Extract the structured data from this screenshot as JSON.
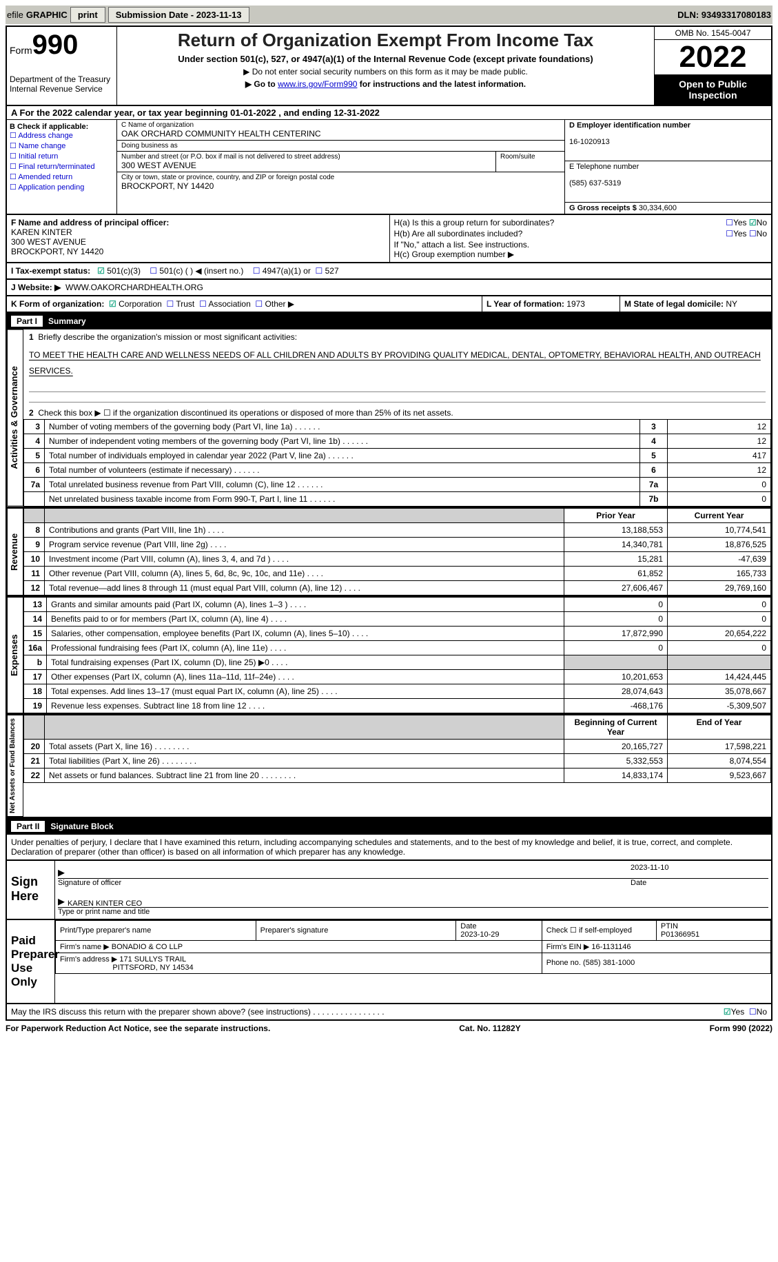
{
  "toolbar": {
    "efile": "efile",
    "graphic": "GRAPHIC",
    "print": "print",
    "submission_label": "Submission Date - 2023-11-13",
    "dln_label": "DLN: 93493317080183"
  },
  "header": {
    "form": "Form",
    "form_no": "990",
    "dept": "Department of the Treasury\nInternal Revenue Service",
    "title": "Return of Organization Exempt From Income Tax",
    "subtitle": "Under section 501(c), 527, or 4947(a)(1) of the Internal Revenue Code (except private foundations)",
    "note1": "▶ Do not enter social security numbers on this form as it may be made public.",
    "note2_pre": "▶ Go to ",
    "note2_link": "www.irs.gov/Form990",
    "note2_post": " for instructions and the latest information.",
    "omb": "OMB No. 1545-0047",
    "year": "2022",
    "inspection": "Open to Public Inspection"
  },
  "rowA": "A For the 2022 calendar year, or tax year beginning 01-01-2022   , and ending 12-31-2022",
  "boxB": {
    "label": "B Check if applicable:",
    "items": [
      "Address change",
      "Name change",
      "Initial return",
      "Final return/terminated",
      "Amended return",
      "Application pending"
    ]
  },
  "boxC": {
    "name_lab": "C Name of organization",
    "name": "OAK ORCHARD COMMUNITY HEALTH CENTERINC",
    "dba_lab": "Doing business as",
    "dba": "",
    "street_lab": "Number and street (or P.O. box if mail is not delivered to street address)",
    "street": "300 WEST AVENUE",
    "room_lab": "Room/suite",
    "city_lab": "City or town, state or province, country, and ZIP or foreign postal code",
    "city": "BROCKPORT, NY  14420"
  },
  "boxD": {
    "lab": "D Employer identification number",
    "val": "16-1020913"
  },
  "boxE": {
    "lab": "E Telephone number",
    "val": "(585) 637-5319"
  },
  "boxG": {
    "lab": "G Gross receipts $",
    "val": "30,334,600"
  },
  "boxF": {
    "lab": "F  Name and address of principal officer:",
    "name": "KAREN KINTER",
    "addr1": "300 WEST AVENUE",
    "addr2": "BROCKPORT, NY  14420"
  },
  "boxH": {
    "a_lab": "H(a)  Is this a group return for subordinates?",
    "a_val": "No",
    "b_lab": "H(b)  Are all subordinates included?",
    "b_note": "If \"No,\" attach a list. See instructions.",
    "c_lab": "H(c)  Group exemption number ▶"
  },
  "rowI": {
    "lab": "I  Tax-exempt status:",
    "opt1": "501(c)(3)",
    "opt2": "501(c) (   ) ◀ (insert no.)",
    "opt3": "4947(a)(1) or",
    "opt4": "527"
  },
  "rowJ": {
    "lab": "J  Website: ▶",
    "val": "WWW.OAKORCHARDHEALTH.ORG"
  },
  "rowK": {
    "lab": "K Form of organization:",
    "opts": [
      "Corporation",
      "Trust",
      "Association",
      "Other ▶"
    ],
    "L_lab": "L Year of formation:",
    "L_val": "1973",
    "M_lab": "M State of legal domicile:",
    "M_val": "NY"
  },
  "part1": {
    "title": "Part I",
    "heading": "Summary",
    "q1": "Briefly describe the organization's mission or most significant activities:",
    "mission": "TO MEET THE HEALTH CARE AND WELLNESS NEEDS OF ALL CHILDREN AND ADULTS BY PROVIDING QUALITY MEDICAL, DENTAL, OPTOMETRY, BEHAVIORAL HEALTH, AND OUTREACH SERVICES.",
    "q2": "Check this box ▶ ☐  if the organization discontinued its operations or disposed of more than 25% of its net assets.",
    "lines_simple": [
      {
        "n": "3",
        "t": "Number of voting members of the governing body (Part VI, line 1a)",
        "box": "3",
        "v": "12"
      },
      {
        "n": "4",
        "t": "Number of independent voting members of the governing body (Part VI, line 1b)",
        "box": "4",
        "v": "12"
      },
      {
        "n": "5",
        "t": "Total number of individuals employed in calendar year 2022 (Part V, line 2a)",
        "box": "5",
        "v": "417"
      },
      {
        "n": "6",
        "t": "Total number of volunteers (estimate if necessary)",
        "box": "6",
        "v": "12"
      },
      {
        "n": "7a",
        "t": "Total unrelated business revenue from Part VIII, column (C), line 12",
        "box": "7a",
        "v": "0"
      },
      {
        "n": "",
        "t": "Net unrelated business taxable income from Form 990-T, Part I, line 11",
        "box": "7b",
        "v": "0"
      }
    ],
    "col_headers": {
      "prior": "Prior Year",
      "current": "Current Year"
    },
    "revenue": [
      {
        "n": "8",
        "t": "Contributions and grants (Part VIII, line 1h)",
        "p": "13,188,553",
        "c": "10,774,541"
      },
      {
        "n": "9",
        "t": "Program service revenue (Part VIII, line 2g)",
        "p": "14,340,781",
        "c": "18,876,525"
      },
      {
        "n": "10",
        "t": "Investment income (Part VIII, column (A), lines 3, 4, and 7d )",
        "p": "15,281",
        "c": "-47,639"
      },
      {
        "n": "11",
        "t": "Other revenue (Part VIII, column (A), lines 5, 6d, 8c, 9c, 10c, and 11e)",
        "p": "61,852",
        "c": "165,733"
      },
      {
        "n": "12",
        "t": "Total revenue—add lines 8 through 11 (must equal Part VIII, column (A), line 12)",
        "p": "27,606,467",
        "c": "29,769,160"
      }
    ],
    "expenses": [
      {
        "n": "13",
        "t": "Grants and similar amounts paid (Part IX, column (A), lines 1–3 )",
        "p": "0",
        "c": "0"
      },
      {
        "n": "14",
        "t": "Benefits paid to or for members (Part IX, column (A), line 4)",
        "p": "0",
        "c": "0"
      },
      {
        "n": "15",
        "t": "Salaries, other compensation, employee benefits (Part IX, column (A), lines 5–10)",
        "p": "17,872,990",
        "c": "20,654,222"
      },
      {
        "n": "16a",
        "t": "Professional fundraising fees (Part IX, column (A), line 11e)",
        "p": "0",
        "c": "0"
      },
      {
        "n": "b",
        "t": "Total fundraising expenses (Part IX, column (D), line 25) ▶0",
        "p": "",
        "c": "",
        "gray": true
      },
      {
        "n": "17",
        "t": "Other expenses (Part IX, column (A), lines 11a–11d, 11f–24e)",
        "p": "10,201,653",
        "c": "14,424,445"
      },
      {
        "n": "18",
        "t": "Total expenses. Add lines 13–17 (must equal Part IX, column (A), line 25)",
        "p": "28,074,643",
        "c": "35,078,667"
      },
      {
        "n": "19",
        "t": "Revenue less expenses. Subtract line 18 from line 12",
        "p": "-468,176",
        "c": "-5,309,507"
      }
    ],
    "net_headers": {
      "begin": "Beginning of Current Year",
      "end": "End of Year"
    },
    "net": [
      {
        "n": "20",
        "t": "Total assets (Part X, line 16)",
        "p": "20,165,727",
        "c": "17,598,221"
      },
      {
        "n": "21",
        "t": "Total liabilities (Part X, line 26)",
        "p": "5,332,553",
        "c": "8,074,554"
      },
      {
        "n": "22",
        "t": "Net assets or fund balances. Subtract line 21 from line 20",
        "p": "14,833,174",
        "c": "9,523,667"
      }
    ],
    "side_labels": {
      "ag": "Activities & Governance",
      "rev": "Revenue",
      "exp": "Expenses",
      "net": "Net Assets or Fund Balances"
    }
  },
  "part2": {
    "title": "Part II",
    "heading": "Signature Block",
    "declaration": "Under penalties of perjury, I declare that I have examined this return, including accompanying schedules and statements, and to the best of my knowledge and belief, it is true, correct, and complete. Declaration of preparer (other than officer) is based on all information of which preparer has any knowledge.",
    "sign_here": "Sign Here",
    "sig_officer": "Signature of officer",
    "sig_date": "2023-11-10",
    "sig_date_lab": "Date",
    "officer_name": "KAREN KINTER CEO",
    "officer_name_lab": "Type or print name and title",
    "paid": "Paid Preparer Use Only",
    "prep_name_lab": "Print/Type preparer's name",
    "prep_sig_lab": "Preparer's signature",
    "prep_date_lab": "Date",
    "prep_date": "2023-10-29",
    "prep_check": "Check ☐ if self-employed",
    "ptin_lab": "PTIN",
    "ptin": "P01366951",
    "firm_name_lab": "Firm's name    ▶",
    "firm_name": "BONADIO & CO LLP",
    "firm_ein_lab": "Firm's EIN ▶",
    "firm_ein": "16-1131146",
    "firm_addr_lab": "Firm's address ▶",
    "firm_addr1": "171 SULLYS TRAIL",
    "firm_addr2": "PITTSFORD, NY  14534",
    "firm_phone_lab": "Phone no.",
    "firm_phone": "(585) 381-1000",
    "discuss": "May the IRS discuss this return with the preparer shown above? (see instructions)",
    "discuss_val": "Yes"
  },
  "footer": {
    "left": "For Paperwork Reduction Act Notice, see the separate instructions.",
    "mid": "Cat. No. 11282Y",
    "right": "Form 990 (2022)"
  }
}
